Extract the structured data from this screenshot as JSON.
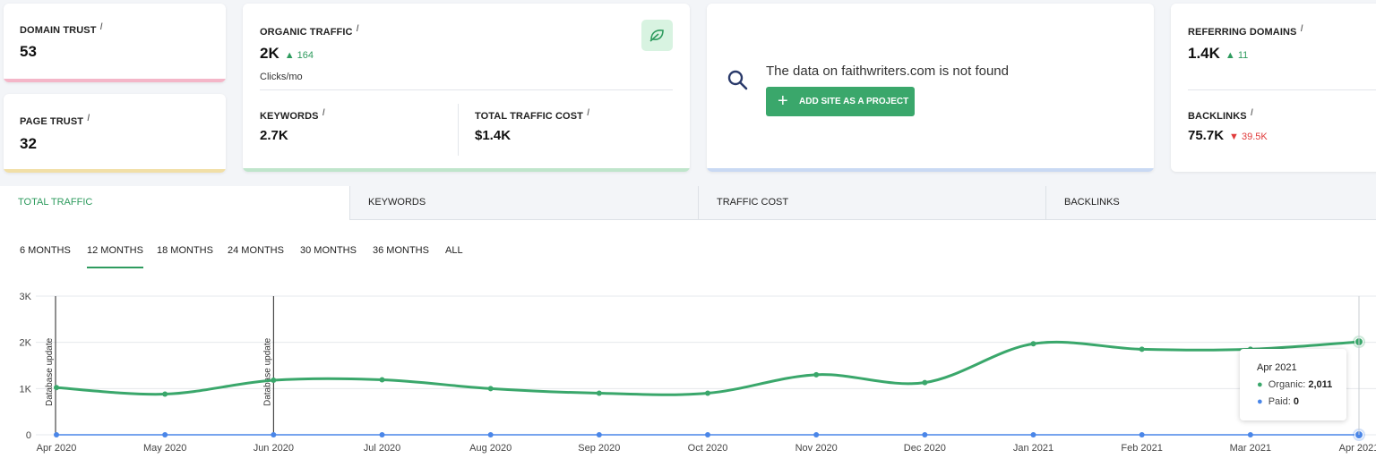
{
  "cards": {
    "domain_trust": {
      "label": "DOMAIN TRUST",
      "info": "i",
      "value": "53"
    },
    "page_trust": {
      "label": "PAGE TRUST",
      "info": "i",
      "value": "32"
    },
    "organic_traffic": {
      "label": "ORGANIC TRAFFIC",
      "info": "i",
      "value": "2K",
      "delta": "▲ 164",
      "sub": "Clicks/mo"
    },
    "keywords": {
      "label": "KEYWORDS",
      "info": "i",
      "value": "2.7K"
    },
    "traffic_cost": {
      "label": "TOTAL TRAFFIC COST",
      "info": "i",
      "value": "$1.4K"
    },
    "not_found": {
      "message": "The data on faithwriters.com is not found",
      "button": "ADD SITE AS A PROJECT"
    },
    "referring_domains": {
      "label": "REFERRING DOMAINS",
      "info": "i",
      "value": "1.4K",
      "delta": "▲ 11"
    },
    "backlinks": {
      "label": "BACKLINKS",
      "info": "i",
      "value": "75.7K",
      "delta": "▼ 39.5K"
    }
  },
  "tabs": [
    "TOTAL TRAFFIC",
    "KEYWORDS",
    "TRAFFIC COST",
    "BACKLINKS"
  ],
  "periods": [
    "6 MONTHS",
    "12 MONTHS",
    "18 MONTHS",
    "24 MONTHS",
    "30 MONTHS",
    "36 MONTHS",
    "ALL"
  ],
  "colors": {
    "accent": "#3aa76b",
    "organic": "#3aa76b",
    "paid": "#4a86e8",
    "up": "#2e9b5e",
    "down": "#e03b3b"
  },
  "chart_data": {
    "type": "line",
    "categories": [
      "Apr 2020",
      "May 2020",
      "Jun 2020",
      "Jul 2020",
      "Aug 2020",
      "Sep 2020",
      "Oct 2020",
      "Nov 2020",
      "Dec 2020",
      "Jan 2021",
      "Feb 2021",
      "Mar 2021",
      "Apr 2021"
    ],
    "series": [
      {
        "name": "Organic",
        "values": [
          1020,
          880,
          1180,
          1190,
          1000,
          900,
          900,
          1300,
          1130,
          1970,
          1850,
          1850,
          2011
        ]
      },
      {
        "name": "Paid",
        "values": [
          0,
          0,
          0,
          0,
          0,
          0,
          0,
          0,
          0,
          0,
          0,
          0,
          0
        ]
      }
    ],
    "ylim": [
      0,
      3000
    ],
    "yticks": [
      "0",
      "1K",
      "2K",
      "3K"
    ],
    "annotations": [
      {
        "x": "Apr 2020",
        "text": "Database update"
      },
      {
        "x": "Jun 2020",
        "text": "Database update"
      }
    ],
    "tooltip": {
      "title": "Apr 2021",
      "organic_label": "Organic:",
      "organic_value": "2,011",
      "paid_label": "Paid:",
      "paid_value": "0"
    },
    "grid": true
  }
}
